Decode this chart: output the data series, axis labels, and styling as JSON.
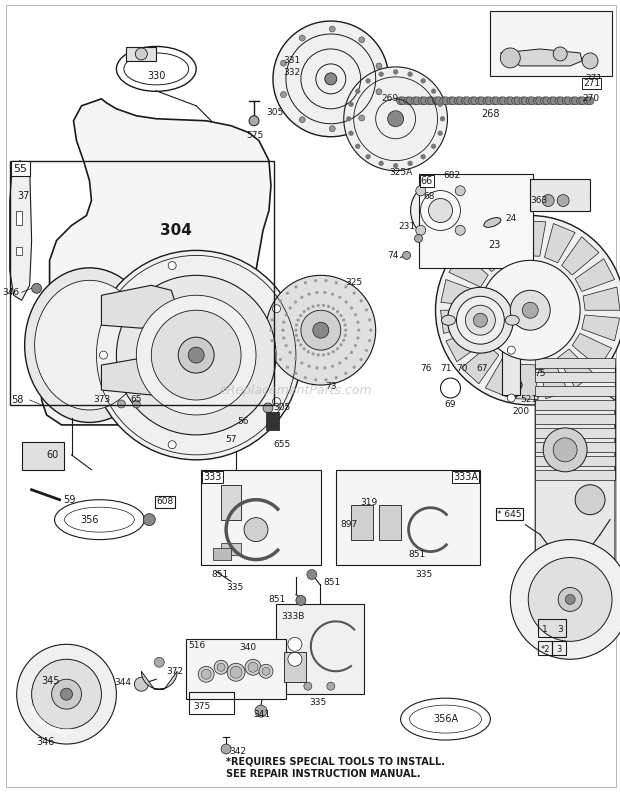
{
  "bg_color": "#ffffff",
  "line_color": "#1a1a1a",
  "watermark": "eReplacementParts.com",
  "watermark_color": "#bbbbbb",
  "footer_text1": "*REQUIRES SPECIAL TOOLS TO INSTALL.",
  "footer_text2": "SEE REPAIR INSTRUCTION MANUAL.",
  "figsize": [
    6.2,
    7.92
  ],
  "dpi": 100
}
